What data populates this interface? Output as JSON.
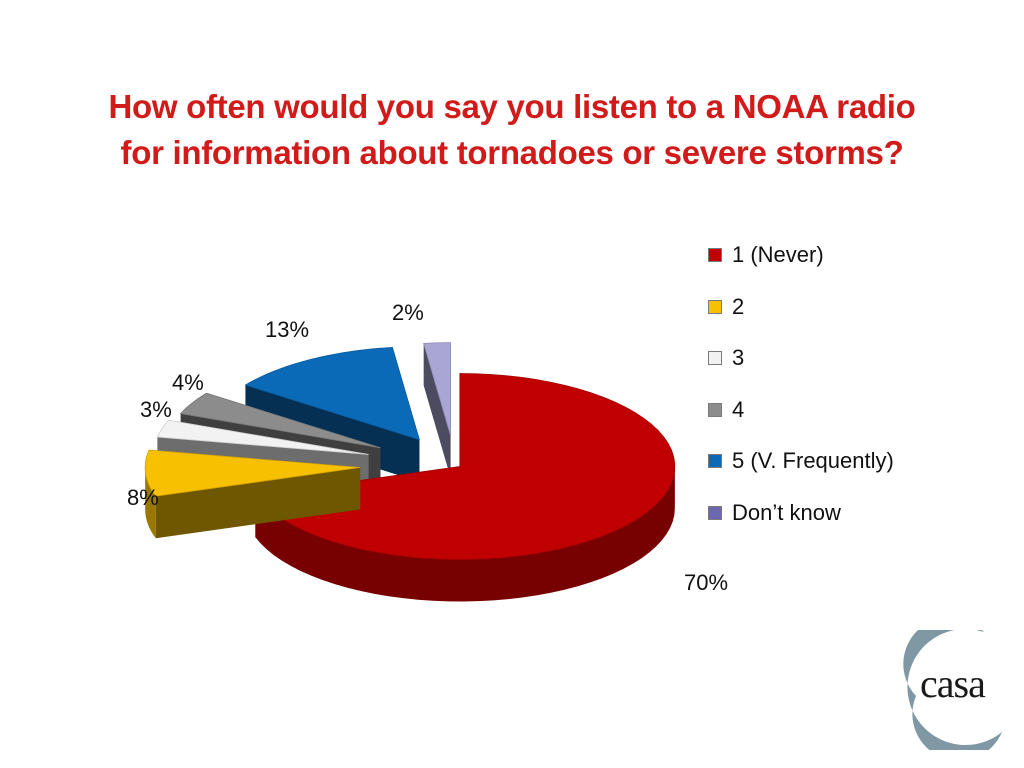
{
  "title": {
    "line1": "How often would you say you listen to a NOAA radio",
    "line2": "for information about tornadoes or severe storms?"
  },
  "chart_data": {
    "type": "pie",
    "style": "3d-exploded",
    "categories": [
      "1 (Never)",
      "2",
      "3",
      "4",
      "5 (V. Frequently)",
      "Don’t know"
    ],
    "values": [
      70,
      8,
      3,
      4,
      13,
      2
    ],
    "data_labels": [
      "70%",
      "8%",
      "3%",
      "4%",
      "13%",
      "2%"
    ],
    "colors": [
      "#c00000",
      "#f7c000",
      "#f2f2f2",
      "#8c8c8c",
      "#0a6ab8",
      "#a9a6d4"
    ],
    "legend_position": "right"
  },
  "legend": {
    "items": [
      {
        "label": "1 (Never)",
        "color": "#c00000"
      },
      {
        "label": "2",
        "color": "#f7c000"
      },
      {
        "label": "3",
        "color": "#f2f2f2"
      },
      {
        "label": "4",
        "color": "#8c8c8c"
      },
      {
        "label": "5 (V. Frequently)",
        "color": "#0a6ab8"
      },
      {
        "label": "Don’t know",
        "color": "#6c68b0"
      }
    ]
  },
  "logo": {
    "text": "casa"
  }
}
